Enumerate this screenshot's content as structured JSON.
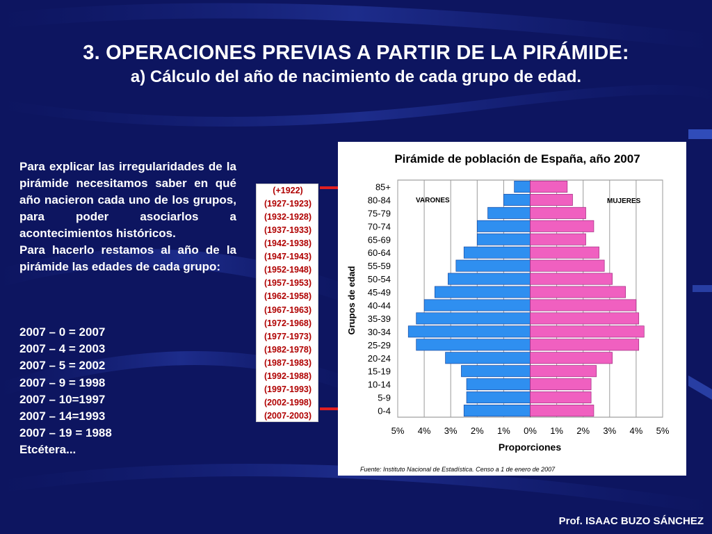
{
  "slide": {
    "title": "3. OPERACIONES PREVIAS A PARTIR DE LA PIRÁMIDE:",
    "subtitle": "a) Cálculo del año de nacimiento de cada grupo de edad.",
    "paragraphs": [
      "Para explicar las irregularidades de la pirámide necesitamos saber en qué año nacieron cada uno de los grupos, para poder asociarlos a acontecimientos históricos.",
      "Para hacerlo restamos al año de la pirámide las edades de cada grupo:"
    ],
    "calculations": [
      "2007 – 0 = 2007",
      "2007 – 4 = 2003",
      "2007 – 5 = 2002",
      "2007 – 9 = 1998",
      "2007 – 10=1997",
      "2007 – 14=1993",
      "2007 – 19 = 1988",
      "Etcétera..."
    ],
    "birth_years": [
      "(+1922)",
      "(1927-1923)",
      "(1932-1928)",
      "(1937-1933)",
      "(1942-1938)",
      "(1947-1943)",
      "(1952-1948)",
      "(1957-1953)",
      "(1962-1958)",
      "(1967-1963)",
      "(1972-1968)",
      "(1977-1973)",
      "(1982-1978)",
      "(1987-1983)",
      "(1992-1988)",
      "(1997-1993)",
      "(2002-1998)",
      "(2007-2003)"
    ],
    "footer": "Prof. ISAAC BUZO SÁNCHEZ",
    "colors": {
      "background": "#0d1560",
      "male": "#2f8ff0",
      "female": "#f060c0",
      "arrow": "#e02020"
    }
  },
  "chart_data": {
    "type": "bar",
    "orientation": "horizontal-pyramid",
    "title": "Pirámide de población de España, año 2007",
    "xlabel": "Proporciones",
    "ylabel": "Grupos de edad",
    "source": "Fuente: Instituto Nacional de Estadística. Censo a 1 de enero de 2007",
    "male_label": "VARONES",
    "female_label": "MUJERES",
    "categories": [
      "85+",
      "80-84",
      "75-79",
      "70-74",
      "65-69",
      "60-64",
      "55-59",
      "50-54",
      "45-49",
      "40-44",
      "35-39",
      "30-34",
      "25-29",
      "20-24",
      "15-19",
      "10-14",
      "5-9",
      "0-4"
    ],
    "series": [
      {
        "name": "VARONES",
        "values": [
          0.6,
          1.0,
          1.6,
          2.0,
          2.0,
          2.5,
          2.8,
          3.1,
          3.6,
          4.0,
          4.3,
          4.6,
          4.3,
          3.2,
          2.6,
          2.4,
          2.4,
          2.5
        ]
      },
      {
        "name": "MUJERES",
        "values": [
          1.4,
          1.6,
          2.1,
          2.4,
          2.1,
          2.6,
          2.8,
          3.1,
          3.6,
          4.0,
          4.1,
          4.3,
          4.1,
          3.1,
          2.5,
          2.3,
          2.3,
          2.4
        ]
      }
    ],
    "xticks": [
      "5%",
      "4%",
      "3%",
      "2%",
      "1%",
      "0%",
      "1%",
      "2%",
      "3%",
      "4%",
      "5%"
    ],
    "xlim": [
      -5,
      5
    ],
    "grid": true
  }
}
